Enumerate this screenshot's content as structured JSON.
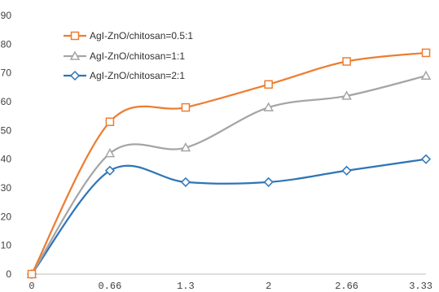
{
  "chart_data": {
    "type": "line",
    "title": "",
    "xlabel": "",
    "ylabel": "",
    "x": [
      0,
      0.66,
      1.3,
      2,
      2.66,
      3.33
    ],
    "x_tick_labels": [
      "0",
      "0.66",
      "1.3",
      "2",
      "2.66",
      "3.33"
    ],
    "ylim": [
      0,
      90
    ],
    "y_ticks": [
      0,
      10,
      20,
      30,
      40,
      50,
      60,
      70,
      80,
      90
    ],
    "grid": false,
    "legend_position": "top-left",
    "smooth": true,
    "series": [
      {
        "name": "AgI-ZnO/chitosan=0.5:1",
        "values": [
          0,
          53,
          58,
          66,
          74,
          77
        ],
        "color": "#ED7D31",
        "marker": "square"
      },
      {
        "name": "AgI-ZnO/chitosan=1:1",
        "values": [
          0,
          42,
          44,
          58,
          62,
          69
        ],
        "color": "#A5A5A5",
        "marker": "triangle"
      },
      {
        "name": "AgI-ZnO/chitosan=2:1",
        "values": [
          0,
          36,
          32,
          32,
          36,
          40
        ],
        "color": "#2E75B6",
        "marker": "diamond"
      }
    ]
  }
}
